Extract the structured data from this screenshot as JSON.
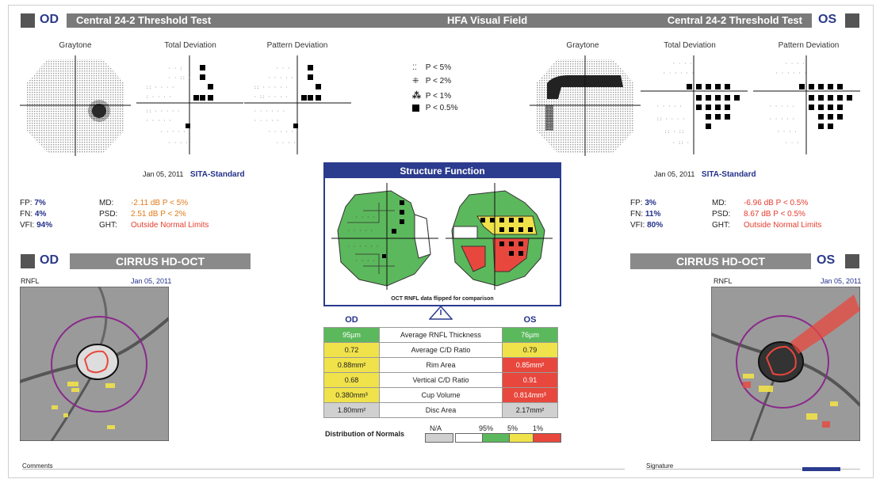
{
  "header": {
    "od_label": "OD",
    "os_label": "OS",
    "left_title": "Central 24-2 Threshold Test",
    "center_title": "HFA Visual Field",
    "right_title": "Central 24-2 Threshold Test"
  },
  "plots": {
    "graytone": "Graytone",
    "total_deviation": "Total Deviation",
    "pattern_deviation": "Pattern Deviation"
  },
  "legend": {
    "p5": "P < 5%",
    "p2": "P < 2%",
    "p1": "P < 1%",
    "p05": "P < 0.5%"
  },
  "od": {
    "date": "Jan 05, 2011",
    "strategy": "SITA-Standard",
    "fp_label": "FP:",
    "fp": "7%",
    "fn_label": "FN:",
    "fn": "4%",
    "vfi_label": "VFI:",
    "vfi": "94%",
    "md_label": "MD:",
    "md": "-2.11 dB P < 5%",
    "psd_label": "PSD:",
    "psd": "2.51 dB P < 2%",
    "ght_label": "GHT:",
    "ght": "Outside Normal Limits"
  },
  "os": {
    "date": "Jan 05, 2011",
    "strategy": "SITA-Standard",
    "fp_label": "FP:",
    "fp": "3%",
    "fn_label": "FN:",
    "fn": "11%",
    "vfi_label": "VFI:",
    "vfi": "80%",
    "md_label": "MD:",
    "md": "-6.96 dB P < 0.5%",
    "psd_label": "PSD:",
    "psd": "8.67 dB P < 0.5%",
    "ght_label": "GHT:",
    "ght": "Outside Normal Limits"
  },
  "structure_function": {
    "title": "Structure Function",
    "caption": "OCT RNFL data flipped for comparison"
  },
  "oct": {
    "title": "CIRRUS HD-OCT",
    "rnfl_label": "RNFL",
    "od_date": "Jan 05, 2011",
    "os_date": "Jan 05, 2011"
  },
  "table": {
    "od_header": "OD",
    "os_header": "OS",
    "rows": [
      {
        "od": "95µm",
        "label": "Average RNFL Thickness",
        "os": "76µm",
        "od_c": "g",
        "os_c": "g"
      },
      {
        "od": "0.72",
        "label": "Average C/D Ratio",
        "os": "0.79",
        "od_c": "y",
        "os_c": "y"
      },
      {
        "od": "0.88mm²",
        "label": "Rim Area",
        "os": "0.85mm²",
        "od_c": "y",
        "os_c": "r"
      },
      {
        "od": "0.68",
        "label": "Vertical C/D Ratio",
        "os": "0.91",
        "od_c": "y",
        "os_c": "r"
      },
      {
        "od": "0.380mm³",
        "label": "Cup Volume",
        "os": "0.814mm³",
        "od_c": "y",
        "os_c": "r"
      },
      {
        "od": "1.80mm²",
        "label": "Disc Area",
        "os": "2.17mm²",
        "od_c": "gr",
        "os_c": "gr"
      }
    ]
  },
  "normals": {
    "label": "Distribution of Normals",
    "na": "N/A",
    "p95": "95%",
    "p5": "5%",
    "p1": "1%"
  },
  "footer": {
    "comments": "Comments",
    "signature": "Signature"
  },
  "colors": {
    "normal": "#5cb85c",
    "borderline": "#f0e24a",
    "outside": "#e8473d",
    "accent": "#23318a"
  }
}
